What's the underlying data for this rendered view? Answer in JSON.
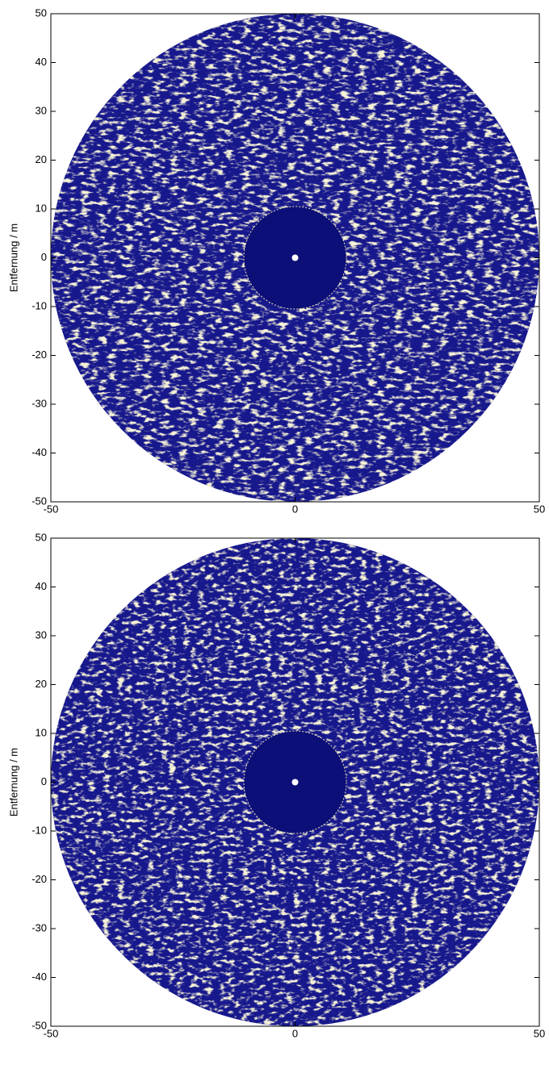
{
  "chart_data": [
    {
      "type": "radar-image",
      "ylabel": "Entfernung / m",
      "xlim": [
        -50,
        50
      ],
      "ylim": [
        -50,
        50
      ],
      "xticks": [
        -50,
        0,
        50
      ],
      "yticks": [
        -50,
        -40,
        -30,
        -20,
        -10,
        0,
        10,
        20,
        30,
        40,
        50
      ]
    },
    {
      "type": "radar-image",
      "ylabel": "Entfernung / m",
      "xlim": [
        -50,
        50
      ],
      "ylim": [
        -50,
        50
      ],
      "xticks": [
        -50,
        0,
        50
      ],
      "yticks": [
        -50,
        -40,
        -30,
        -20,
        -10,
        0,
        10,
        20,
        30,
        40,
        50
      ]
    }
  ]
}
